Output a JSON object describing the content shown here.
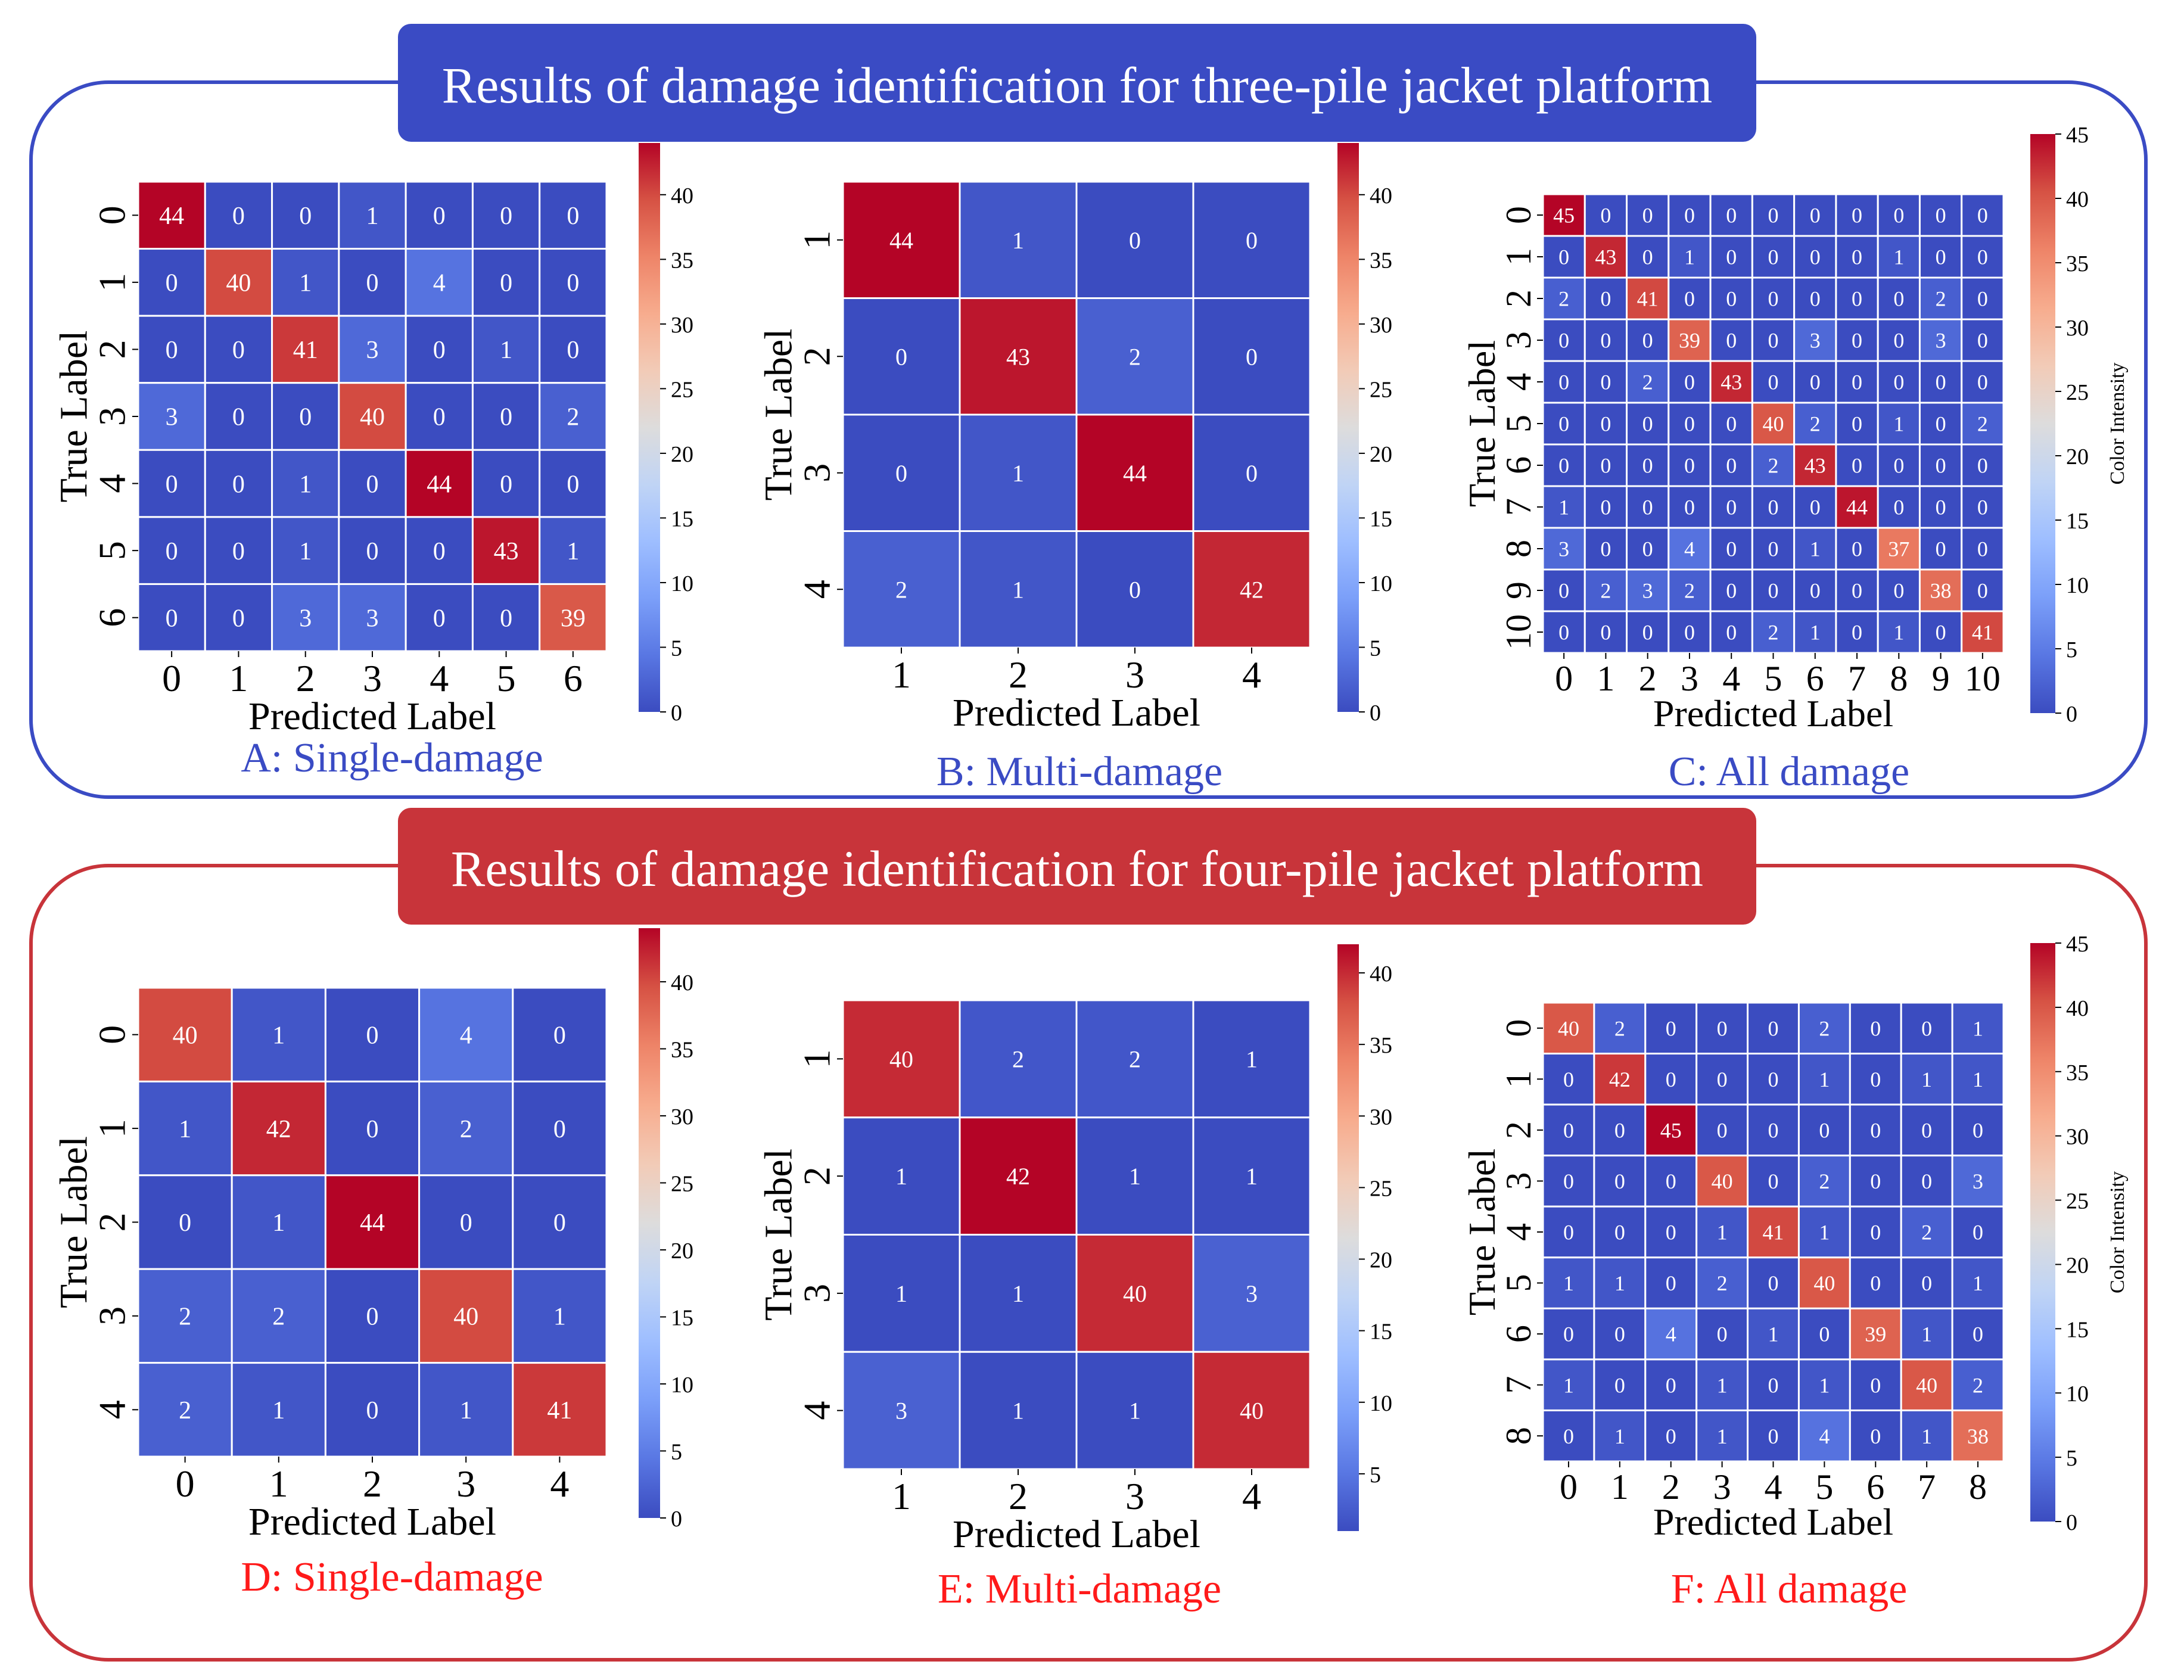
{
  "sections": [
    {
      "title": "Results of damage identification for three-pile jacket platform",
      "color": "#3a4bc4"
    },
    {
      "title": "Results of damage identification for four-pile jacket platform",
      "color": "#c8343a"
    }
  ],
  "colors": {
    "low": "#3b4cc0",
    "mid": "#dddddd",
    "high": "#b40426",
    "caption_top": "#3a4bc4",
    "caption_bottom": "#ff1a1a"
  },
  "chart_data": [
    {
      "type": "heatmap",
      "caption": "A: Single-damage",
      "xlabel": "Predicted Label",
      "ylabel": "True Label",
      "labels": [
        "0",
        "1",
        "2",
        "3",
        "4",
        "5",
        "6"
      ],
      "vmin": 0,
      "vmax": 44,
      "colorbar_ticks": [
        0,
        5,
        10,
        15,
        20,
        25,
        30,
        35,
        40
      ],
      "colorbar_label": "",
      "matrix": [
        [
          44,
          0,
          0,
          1,
          0,
          0,
          0
        ],
        [
          0,
          40,
          1,
          0,
          4,
          0,
          0
        ],
        [
          0,
          0,
          41,
          3,
          0,
          1,
          0
        ],
        [
          3,
          0,
          0,
          40,
          0,
          0,
          2
        ],
        [
          0,
          0,
          1,
          0,
          44,
          0,
          0
        ],
        [
          0,
          0,
          1,
          0,
          0,
          43,
          1
        ],
        [
          0,
          0,
          3,
          3,
          0,
          0,
          39
        ]
      ]
    },
    {
      "type": "heatmap",
      "caption": "B: Multi-damage",
      "xlabel": "Predicted Label",
      "ylabel": "True Label",
      "labels": [
        "1",
        "2",
        "3",
        "4"
      ],
      "vmin": 0,
      "vmax": 44,
      "colorbar_ticks": [
        0,
        5,
        10,
        15,
        20,
        25,
        30,
        35,
        40
      ],
      "colorbar_label": "",
      "matrix": [
        [
          44,
          1,
          0,
          0
        ],
        [
          0,
          43,
          2,
          0
        ],
        [
          0,
          1,
          44,
          0
        ],
        [
          2,
          1,
          0,
          42
        ]
      ]
    },
    {
      "type": "heatmap",
      "caption": "C: All damage",
      "xlabel": "Predicted Label",
      "ylabel": "True Label",
      "labels": [
        "0",
        "1",
        "2",
        "3",
        "4",
        "5",
        "6",
        "7",
        "8",
        "9",
        "10"
      ],
      "vmin": 0,
      "vmax": 45,
      "colorbar_ticks": [
        0,
        5,
        10,
        15,
        20,
        25,
        30,
        35,
        40,
        45
      ],
      "colorbar_label": "Color Intensity",
      "matrix": [
        [
          45,
          0,
          0,
          0,
          0,
          0,
          0,
          0,
          0,
          0,
          0
        ],
        [
          0,
          43,
          0,
          1,
          0,
          0,
          0,
          0,
          1,
          0,
          0
        ],
        [
          2,
          0,
          41,
          0,
          0,
          0,
          0,
          0,
          0,
          2,
          0
        ],
        [
          0,
          0,
          0,
          39,
          0,
          0,
          3,
          0,
          0,
          3,
          0
        ],
        [
          0,
          0,
          2,
          0,
          43,
          0,
          0,
          0,
          0,
          0,
          0
        ],
        [
          0,
          0,
          0,
          0,
          0,
          40,
          2,
          0,
          1,
          0,
          2
        ],
        [
          0,
          0,
          0,
          0,
          0,
          2,
          43,
          0,
          0,
          0,
          0
        ],
        [
          1,
          0,
          0,
          0,
          0,
          0,
          0,
          44,
          0,
          0,
          0
        ],
        [
          3,
          0,
          0,
          4,
          0,
          0,
          1,
          0,
          37,
          0,
          0
        ],
        [
          0,
          2,
          3,
          2,
          0,
          0,
          0,
          0,
          0,
          38,
          0
        ],
        [
          0,
          0,
          0,
          0,
          0,
          2,
          1,
          0,
          1,
          0,
          41
        ]
      ]
    },
    {
      "type": "heatmap",
      "caption": "D: Single-damage",
      "xlabel": "Predicted Label",
      "ylabel": "True Label",
      "labels": [
        "0",
        "1",
        "2",
        "3",
        "4"
      ],
      "vmin": 0,
      "vmax": 44,
      "colorbar_ticks": [
        0,
        5,
        10,
        15,
        20,
        25,
        30,
        35,
        40
      ],
      "colorbar_label": "",
      "matrix": [
        [
          40,
          1,
          0,
          4,
          0
        ],
        [
          1,
          42,
          0,
          2,
          0
        ],
        [
          0,
          1,
          44,
          0,
          0
        ],
        [
          2,
          2,
          0,
          40,
          1
        ],
        [
          2,
          1,
          0,
          1,
          41
        ]
      ]
    },
    {
      "type": "heatmap",
      "caption": "E: Multi-damage",
      "xlabel": "Predicted Label",
      "ylabel": "True Label",
      "labels": [
        "1",
        "2",
        "3",
        "4"
      ],
      "vmin": 1,
      "vmax": 42,
      "colorbar_ticks": [
        5,
        10,
        15,
        20,
        25,
        30,
        35,
        40
      ],
      "colorbar_label": "",
      "matrix": [
        [
          40,
          2,
          2,
          1
        ],
        [
          1,
          42,
          1,
          1
        ],
        [
          1,
          1,
          40,
          3
        ],
        [
          3,
          1,
          1,
          40
        ]
      ]
    },
    {
      "type": "heatmap",
      "caption": "F: All damage",
      "xlabel": "Predicted Label",
      "ylabel": "True Label",
      "labels": [
        "0",
        "1",
        "2",
        "3",
        "4",
        "5",
        "6",
        "7",
        "8"
      ],
      "vmin": 0,
      "vmax": 45,
      "colorbar_ticks": [
        0,
        5,
        10,
        15,
        20,
        25,
        30,
        35,
        40,
        45
      ],
      "colorbar_label": "Color Intensity",
      "matrix": [
        [
          40,
          2,
          0,
          0,
          0,
          2,
          0,
          0,
          1
        ],
        [
          0,
          42,
          0,
          0,
          0,
          1,
          0,
          1,
          1
        ],
        [
          0,
          0,
          45,
          0,
          0,
          0,
          0,
          0,
          0
        ],
        [
          0,
          0,
          0,
          40,
          0,
          2,
          0,
          0,
          3
        ],
        [
          0,
          0,
          0,
          1,
          41,
          1,
          0,
          2,
          0
        ],
        [
          1,
          1,
          0,
          2,
          0,
          40,
          0,
          0,
          1
        ],
        [
          0,
          0,
          4,
          0,
          1,
          0,
          39,
          1,
          0
        ],
        [
          1,
          0,
          0,
          1,
          0,
          1,
          0,
          40,
          2
        ],
        [
          0,
          1,
          0,
          1,
          0,
          4,
          0,
          1,
          38
        ]
      ]
    }
  ]
}
